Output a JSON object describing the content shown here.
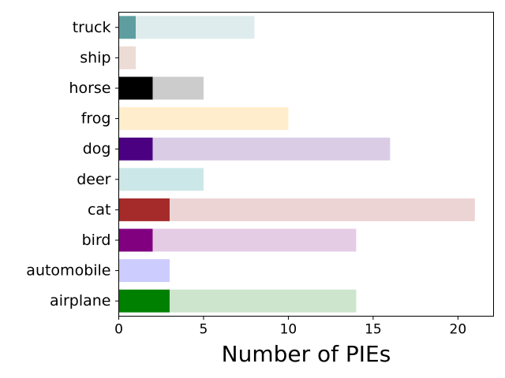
{
  "chart_data": {
    "type": "bar",
    "orientation": "horizontal",
    "stacked": true,
    "title": "",
    "xlabel": "Number of PIEs",
    "ylabel": "",
    "xlim": [
      0,
      22.1
    ],
    "xticks": [
      0,
      5,
      10,
      15,
      20
    ],
    "grid": false,
    "categories": [
      "airplane",
      "automobile",
      "bird",
      "cat",
      "deer",
      "dog",
      "frog",
      "horse",
      "ship",
      "truck"
    ],
    "series": [
      {
        "values": [
          3,
          0,
          2,
          3,
          0,
          2,
          0,
          2,
          0,
          1
        ],
        "colors": [
          "#008000",
          "#0000ff",
          "#800080",
          "#a52a2a",
          "#008b8b",
          "#4b0082",
          "#ffa500",
          "#000000",
          "#a0522d",
          "#5f9ea0"
        ]
      },
      {
        "values": [
          11,
          3,
          12,
          18,
          5,
          14,
          10,
          3,
          1,
          7
        ],
        "colors": [
          "#cce5cc",
          "#ccccff",
          "#e5cce5",
          "#edd4d4",
          "#cce7e7",
          "#dbcce6",
          "#ffedcc",
          "#cccccc",
          "#ecdcd5",
          "#dfeced"
        ]
      }
    ]
  }
}
